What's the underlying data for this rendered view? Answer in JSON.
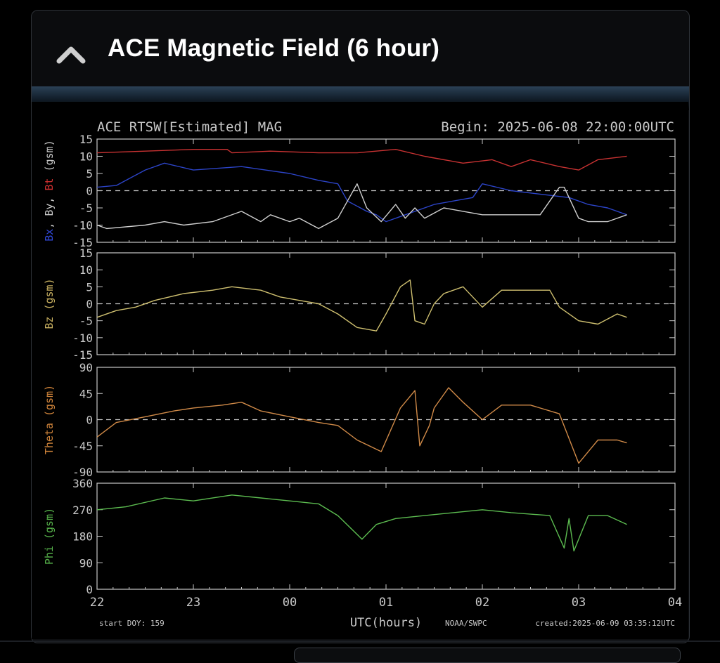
{
  "panel": {
    "title": "ACE Magnetic Field (6 hour)",
    "collapse_icon": "chevron-up-icon"
  },
  "chart_header": {
    "left": "ACE RTSW[Estimated] MAG",
    "right": "Begin: 2025-06-08 22:00:00UTC"
  },
  "footer": {
    "start_doy": "start DOY: 159",
    "xlabel": "UTC(hours)",
    "credit": "NOAA/SWPC",
    "created": "created:2025-06-09 03:35:12UTC"
  },
  "chart_data": [
    {
      "type": "line",
      "ylabel_parts": [
        {
          "text": "Bx",
          "color": "#3048d8"
        },
        {
          "text": ", By, ",
          "color": "#c8c8c8"
        },
        {
          "text": "Bt",
          "color": "#d03030"
        },
        {
          "text": " (gsm)",
          "color": "#c8c8c8"
        }
      ],
      "ylim": [
        -15,
        15
      ],
      "yticks": [
        "15",
        "10",
        "5",
        "0",
        "-5",
        "-10",
        "-15"
      ],
      "xticks": [
        "22",
        "23",
        "00",
        "01",
        "02",
        "03",
        "04"
      ],
      "xlim": [
        0,
        6
      ],
      "zero_line": true,
      "series": [
        {
          "name": "Bt",
          "color": "#c83232",
          "x": [
            0,
            0.5,
            1.0,
            1.35,
            1.4,
            1.8,
            2.3,
            2.7,
            3.1,
            3.4,
            3.8,
            4.1,
            4.3,
            4.5,
            4.8,
            5.0,
            5.2,
            5.5
          ],
          "y": [
            11,
            11.5,
            12,
            12,
            11,
            11.5,
            11,
            11,
            12,
            10,
            8,
            9,
            7,
            9,
            7,
            6,
            9,
            10
          ]
        },
        {
          "name": "Bx",
          "color": "#2c44c8",
          "x": [
            0,
            0.2,
            0.5,
            0.7,
            1.0,
            1.5,
            2.0,
            2.3,
            2.5,
            2.6,
            2.8,
            2.9,
            3.0,
            3.2,
            3.5,
            3.9,
            4.0,
            4.3,
            4.6,
            4.9,
            5.1,
            5.3,
            5.5
          ],
          "y": [
            1,
            1.5,
            6,
            8,
            6,
            7,
            5,
            3,
            2,
            -3,
            -6,
            -7,
            -9,
            -7,
            -4,
            -2,
            2,
            0,
            -1,
            -2,
            -4,
            -5,
            -7
          ]
        },
        {
          "name": "By",
          "color": "#d0d0d0",
          "x": [
            0,
            0.1,
            0.5,
            0.7,
            0.9,
            1.2,
            1.5,
            1.7,
            1.8,
            2.0,
            2.1,
            2.3,
            2.5,
            2.6,
            2.7,
            2.8,
            2.95,
            3.1,
            3.2,
            3.3,
            3.4,
            3.6,
            3.8,
            4.0,
            4.3,
            4.6,
            4.8,
            4.85,
            5.0,
            5.1,
            5.3,
            5.5
          ],
          "y": [
            -10,
            -11,
            -10,
            -9,
            -10,
            -9,
            -6,
            -9,
            -7,
            -9,
            -8,
            -11,
            -8,
            -3,
            2,
            -5,
            -9,
            -4,
            -8,
            -5,
            -8,
            -5,
            -6,
            -7,
            -7,
            -7,
            1,
            1,
            -8,
            -9,
            -9,
            -7
          ]
        }
      ]
    },
    {
      "type": "line",
      "ylabel_parts": [
        {
          "text": "Bz (gsm)",
          "color": "#c8b060"
        }
      ],
      "ylim": [
        -15,
        15
      ],
      "yticks": [
        "15",
        "10",
        "5",
        "0",
        "-5",
        "-10",
        "-15"
      ],
      "xticks": [
        "22",
        "23",
        "00",
        "01",
        "02",
        "03",
        "04"
      ],
      "xlim": [
        0,
        6
      ],
      "zero_line": true,
      "series": [
        {
          "name": "Bz",
          "color": "#cfc070",
          "x": [
            0,
            0.2,
            0.4,
            0.6,
            0.9,
            1.2,
            1.4,
            1.7,
            1.9,
            2.1,
            2.3,
            2.5,
            2.7,
            2.9,
            3.0,
            3.15,
            3.25,
            3.3,
            3.4,
            3.5,
            3.6,
            3.8,
            4.0,
            4.2,
            4.5,
            4.7,
            4.8,
            5.0,
            5.2,
            5.4,
            5.5
          ],
          "y": [
            -4,
            -2,
            -1,
            1,
            3,
            4,
            5,
            4,
            2,
            1,
            0,
            -3,
            -7,
            -8,
            -3,
            5,
            7,
            -5,
            -6,
            0,
            3,
            5,
            -1,
            4,
            4,
            4,
            -1,
            -5,
            -6,
            -3,
            -4
          ]
        }
      ]
    },
    {
      "type": "line",
      "ylabel_parts": [
        {
          "text": "Theta (gsm)",
          "color": "#d0843a"
        }
      ],
      "ylim": [
        -90,
        90
      ],
      "yticks": [
        "90",
        "45",
        "0",
        "-45",
        "-90"
      ],
      "xticks": [
        "22",
        "23",
        "00",
        "01",
        "02",
        "03",
        "04"
      ],
      "xlim": [
        0,
        6
      ],
      "zero_line": true,
      "series": [
        {
          "name": "Theta",
          "color": "#d08a48",
          "x": [
            0,
            0.2,
            0.5,
            0.8,
            1.0,
            1.3,
            1.5,
            1.7,
            2.0,
            2.3,
            2.5,
            2.7,
            2.95,
            3.15,
            3.3,
            3.35,
            3.45,
            3.5,
            3.65,
            3.8,
            4.0,
            4.2,
            4.5,
            4.8,
            5.0,
            5.2,
            5.4,
            5.5
          ],
          "y": [
            -30,
            -5,
            5,
            15,
            20,
            25,
            30,
            15,
            5,
            -5,
            -10,
            -35,
            -55,
            20,
            50,
            -45,
            -10,
            20,
            55,
            30,
            0,
            25,
            25,
            10,
            -75,
            -35,
            -35,
            -40
          ]
        }
      ]
    },
    {
      "type": "line",
      "ylabel_parts": [
        {
          "text": "Phi (gsm)",
          "color": "#56b24a"
        }
      ],
      "ylim": [
        0,
        360
      ],
      "yticks": [
        "360",
        "270",
        "180",
        "90",
        "0"
      ],
      "xticks": [
        "22",
        "23",
        "00",
        "01",
        "02",
        "03",
        "04"
      ],
      "xlim": [
        0,
        6
      ],
      "zero_line": false,
      "series": [
        {
          "name": "Phi",
          "color": "#5cbc50",
          "x": [
            0,
            0.3,
            0.7,
            1.0,
            1.4,
            1.7,
            2.0,
            2.3,
            2.5,
            2.75,
            2.9,
            3.1,
            3.4,
            3.7,
            4.0,
            4.3,
            4.7,
            4.85,
            4.9,
            4.95,
            5.1,
            5.3,
            5.5
          ],
          "y": [
            270,
            280,
            310,
            300,
            320,
            310,
            300,
            290,
            250,
            170,
            220,
            240,
            250,
            260,
            270,
            260,
            250,
            140,
            240,
            130,
            250,
            250,
            220
          ]
        }
      ]
    }
  ]
}
